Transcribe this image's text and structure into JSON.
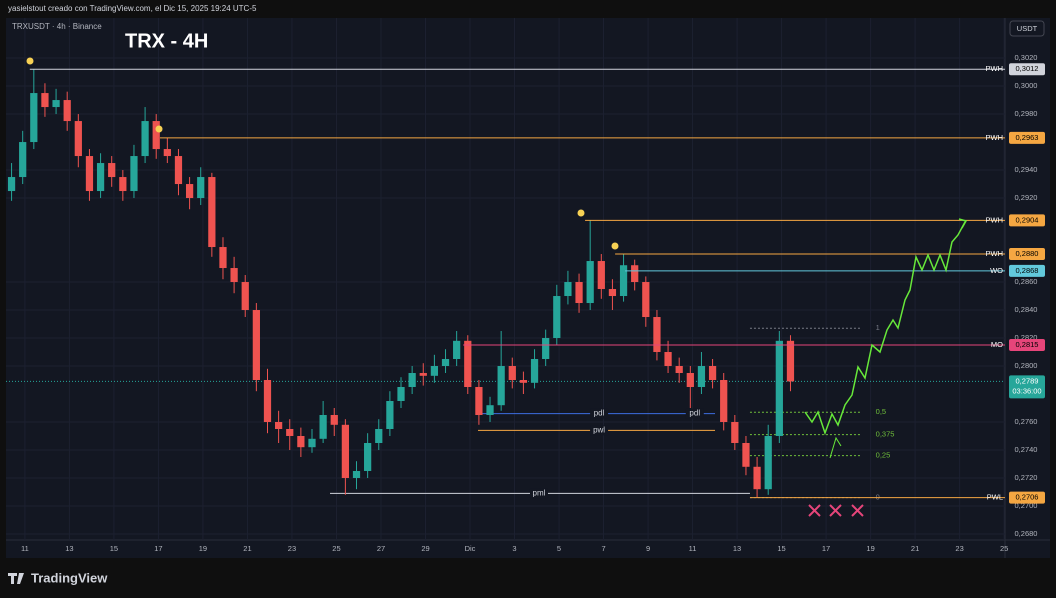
{
  "chart_data": {
    "type": "candlestick",
    "header": "yasielstout creado con TradingView.com, el Dic 15, 2025 19:24 UTC-5",
    "symbol": "TRXUSDT · 4h · Binance",
    "title": "TRX - 4H",
    "currency": "USDT",
    "brand": "TradingView",
    "up_color": "#26a69a",
    "down_color": "#ef5350",
    "grid": true,
    "xlim": [
      -0.76,
      44.04
    ],
    "ylim": [
      0.26757,
      0.30329
    ],
    "xticks": [
      {
        "value": 0,
        "label": "11"
      },
      {
        "value": 2,
        "label": "13"
      },
      {
        "value": 4,
        "label": "15"
      },
      {
        "value": 6,
        "label": "17"
      },
      {
        "value": 8,
        "label": "19"
      },
      {
        "value": 10,
        "label": "21"
      },
      {
        "value": 12,
        "label": "23"
      },
      {
        "value": 14,
        "label": "25"
      },
      {
        "value": 16,
        "label": "27"
      },
      {
        "value": 18,
        "label": "29"
      },
      {
        "value": 20,
        "label": "Dic"
      },
      {
        "value": 22,
        "label": "3"
      },
      {
        "value": 24,
        "label": "5"
      },
      {
        "value": 26,
        "label": "7"
      },
      {
        "value": 28,
        "label": "9"
      },
      {
        "value": 30,
        "label": "11"
      },
      {
        "value": 32,
        "label": "13"
      },
      {
        "value": 34,
        "label": "15"
      },
      {
        "value": 36,
        "label": "17"
      },
      {
        "value": 38,
        "label": "19"
      },
      {
        "value": 40,
        "label": "21"
      },
      {
        "value": 42,
        "label": "23"
      },
      {
        "value": 44,
        "label": "25"
      }
    ],
    "yticks": [
      {
        "value": 0.302,
        "label": "0,3020"
      },
      {
        "value": 0.3,
        "label": "0,3000"
      },
      {
        "value": 0.298,
        "label": "0,2980"
      },
      {
        "value": 0.294,
        "label": "0,2940"
      },
      {
        "value": 0.292,
        "label": "0,2920"
      },
      {
        "value": 0.286,
        "label": "0,2860"
      },
      {
        "value": 0.284,
        "label": "0,2840"
      },
      {
        "value": 0.282,
        "label": "0,2820"
      },
      {
        "value": 0.28,
        "label": "0,2800"
      },
      {
        "value": 0.276,
        "label": "0,2760"
      },
      {
        "value": 0.274,
        "label": "0,2740"
      },
      {
        "value": 0.272,
        "label": "0,2720"
      },
      {
        "value": 0.27,
        "label": "0,2700"
      },
      {
        "value": 0.268,
        "label": "0,2680"
      }
    ],
    "x": [
      -0.6,
      -0.1,
      0.4,
      0.9,
      1.4,
      1.9,
      2.4,
      2.9,
      3.4,
      3.9,
      4.4,
      4.9,
      5.4,
      5.9,
      6.4,
      6.9,
      7.4,
      7.9,
      8.4,
      8.9,
      9.4,
      9.9,
      10.4,
      10.9,
      11.4,
      11.9,
      12.4,
      12.9,
      13.4,
      13.9,
      14.4,
      14.9,
      15.4,
      15.9,
      16.4,
      16.9,
      17.4,
      17.9,
      18.4,
      18.9,
      19.4,
      19.9,
      20.4,
      20.9,
      21.4,
      21.9,
      22.4,
      22.9,
      23.4,
      23.9,
      24.4,
      24.9,
      25.4,
      25.9,
      26.4,
      26.9,
      27.4,
      27.9,
      28.4,
      28.9,
      29.4,
      29.9,
      30.4,
      30.9,
      31.4,
      31.9,
      32.4,
      32.9,
      33.4,
      33.9,
      34.4
    ],
    "open": [
      0.2925,
      0.2935,
      0.296,
      0.2995,
      0.2985,
      0.299,
      0.2975,
      0.295,
      0.2925,
      0.2945,
      0.2935,
      0.2925,
      0.295,
      0.2975,
      0.2955,
      0.295,
      0.293,
      0.292,
      0.2935,
      0.2885,
      0.287,
      0.286,
      0.284,
      0.279,
      0.276,
      0.2755,
      0.275,
      0.2742,
      0.2748,
      0.2765,
      0.2758,
      0.272,
      0.2725,
      0.2745,
      0.2755,
      0.2775,
      0.2785,
      0.2795,
      0.2793,
      0.28,
      0.2805,
      0.2818,
      0.2785,
      0.2765,
      0.2772,
      0.28,
      0.279,
      0.2788,
      0.2805,
      0.282,
      0.285,
      0.286,
      0.2845,
      0.2875,
      0.2855,
      0.285,
      0.2872,
      0.286,
      0.2835,
      0.281,
      0.28,
      0.2795,
      0.2785,
      0.28,
      0.279,
      0.276,
      0.2745,
      0.2728,
      0.2712,
      0.275,
      0.2818
    ],
    "high": [
      0.2945,
      0.2968,
      0.3012,
      0.3002,
      0.2998,
      0.2996,
      0.298,
      0.2955,
      0.2952,
      0.295,
      0.294,
      0.2958,
      0.2985,
      0.298,
      0.2963,
      0.2955,
      0.2935,
      0.2942,
      0.2938,
      0.2892,
      0.2878,
      0.2865,
      0.2845,
      0.2798,
      0.2768,
      0.2762,
      0.2756,
      0.2755,
      0.2775,
      0.277,
      0.2762,
      0.2732,
      0.2752,
      0.2762,
      0.2782,
      0.2792,
      0.28,
      0.2802,
      0.2808,
      0.2812,
      0.2825,
      0.2822,
      0.279,
      0.2778,
      0.2825,
      0.2806,
      0.2796,
      0.2812,
      0.2826,
      0.2858,
      0.2868,
      0.2866,
      0.2904,
      0.288,
      0.2862,
      0.288,
      0.2876,
      0.2864,
      0.284,
      0.2818,
      0.2806,
      0.28,
      0.281,
      0.2805,
      0.2795,
      0.2765,
      0.275,
      0.2735,
      0.2758,
      0.2825,
      0.2822
    ],
    "low": [
      0.2918,
      0.293,
      0.2955,
      0.2978,
      0.298,
      0.2968,
      0.2942,
      0.2918,
      0.292,
      0.2928,
      0.2918,
      0.292,
      0.2945,
      0.2948,
      0.2945,
      0.2922,
      0.2912,
      0.2915,
      0.2878,
      0.2862,
      0.2852,
      0.2835,
      0.2782,
      0.2752,
      0.2745,
      0.274,
      0.2735,
      0.2738,
      0.2745,
      0.275,
      0.2708,
      0.2712,
      0.272,
      0.274,
      0.275,
      0.277,
      0.278,
      0.2786,
      0.2788,
      0.2795,
      0.28,
      0.278,
      0.2758,
      0.276,
      0.2768,
      0.2784,
      0.278,
      0.2784,
      0.28,
      0.2815,
      0.2844,
      0.2838,
      0.284,
      0.2848,
      0.284,
      0.2846,
      0.2854,
      0.2828,
      0.2804,
      0.2795,
      0.2788,
      0.277,
      0.278,
      0.2784,
      0.2754,
      0.274,
      0.2722,
      0.2706,
      0.2708,
      0.2745,
      0.2782
    ],
    "close": [
      0.2935,
      0.296,
      0.2995,
      0.2985,
      0.299,
      0.2975,
      0.295,
      0.2925,
      0.2945,
      0.2935,
      0.2925,
      0.295,
      0.2975,
      0.2955,
      0.295,
      0.293,
      0.292,
      0.2935,
      0.2885,
      0.287,
      0.286,
      0.284,
      0.279,
      0.276,
      0.2755,
      0.275,
      0.2742,
      0.2748,
      0.2765,
      0.2758,
      0.272,
      0.2725,
      0.2745,
      0.2755,
      0.2775,
      0.2785,
      0.2795,
      0.2793,
      0.28,
      0.2805,
      0.2818,
      0.2785,
      0.2765,
      0.2772,
      0.28,
      0.279,
      0.2788,
      0.2805,
      0.282,
      0.285,
      0.286,
      0.2845,
      0.2875,
      0.2855,
      0.285,
      0.2872,
      0.286,
      0.2835,
      0.281,
      0.28,
      0.2795,
      0.2785,
      0.28,
      0.279,
      0.276,
      0.2745,
      0.2728,
      0.2712,
      0.275,
      0.2818,
      0.2789
    ],
    "levels": [
      {
        "name": "PWH",
        "value": 0.3012,
        "value_label": "0,3012",
        "color": "#d1d4dc",
        "start": 0.22
      },
      {
        "name": "PWH",
        "value": 0.2963,
        "value_label": "0,2963",
        "color": "#f5a742",
        "start": 6.07
      },
      {
        "name": "PWH",
        "value": 0.2904,
        "value_label": "0,2904",
        "color": "#f5a742",
        "start": 25.17
      },
      {
        "name": "PWH",
        "value": 0.288,
        "value_label": "0,2880",
        "color": "#f5a742",
        "start": 26.52
      },
      {
        "name": "WO",
        "value": 0.2868,
        "value_label": "0,2868",
        "color": "#62c9dc",
        "start": 26.97
      },
      {
        "name": "MO",
        "value": 0.2815,
        "value_label": "0,2815",
        "color": "#e6457a",
        "start": 19.69
      },
      {
        "name": "PWL",
        "value": 0.2706,
        "value_label": "0,2706",
        "color": "#f5a742",
        "start": 32.58
      }
    ],
    "segments": [
      {
        "name": "pml",
        "value": 0.2709,
        "start": 13.71,
        "end": 32.58,
        "color": "#d1d4dc",
        "label_at": [
          23.1
        ]
      },
      {
        "name": "pdl",
        "value": 0.2766,
        "start": 20.45,
        "end": 31.01,
        "color": "#3d6ee0",
        "label_at": [
          25.8,
          30.1
        ]
      },
      {
        "name": "pwl",
        "value": 0.2754,
        "start": 20.36,
        "end": 31.01,
        "color": "#f5a742",
        "label_at": [
          25.8
        ]
      }
    ],
    "fib": {
      "start": 32.58,
      "end": 37.6,
      "levels": [
        {
          "label": "1",
          "value": 0.2827,
          "color": "#787b86"
        },
        {
          "label": "0,5",
          "value": 0.2767,
          "color": "#6fbf3a"
        },
        {
          "label": "0,375",
          "value": 0.2751,
          "color": "#6fbf3a"
        },
        {
          "label": "0,25",
          "value": 0.2736,
          "color": "#6fbf3a"
        },
        {
          "label": "0",
          "value": 0.2706,
          "color": "#787b86"
        }
      ]
    },
    "last": {
      "value": 0.2789,
      "value_label": "0,2789",
      "countdown": "03:36:00",
      "color": "#26a69a"
    }
  }
}
